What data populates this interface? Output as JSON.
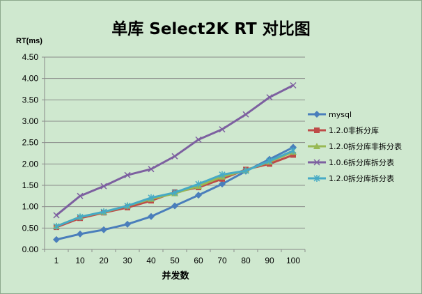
{
  "chart_data": {
    "type": "line",
    "title": "单库 Select2K RT 对比图",
    "ylabel": "RT(ms)",
    "xlabel": "并发数",
    "categories": [
      "1",
      "10",
      "20",
      "30",
      "40",
      "50",
      "60",
      "70",
      "80",
      "90",
      "100"
    ],
    "ylim": [
      0,
      4.5
    ],
    "ystep": 0.5,
    "ytick_labels": [
      "0.00",
      "0.50",
      "1.00",
      "1.50",
      "2.00",
      "2.50",
      "3.00",
      "3.50",
      "4.00",
      "4.50"
    ],
    "grid": true,
    "legend_position": "right",
    "series": [
      {
        "name": "mysql",
        "color": "#4a7ebb",
        "marker": "diamond",
        "values": [
          0.23,
          0.36,
          0.46,
          0.59,
          0.77,
          1.02,
          1.27,
          1.53,
          1.83,
          2.11,
          2.39
        ]
      },
      {
        "name": "1.2.0非拆分库",
        "color": "#be4b48",
        "marker": "square",
        "values": [
          0.52,
          0.73,
          0.86,
          0.98,
          1.14,
          1.34,
          1.45,
          1.65,
          1.87,
          2.0,
          2.21
        ]
      },
      {
        "name": "1.2.0拆分库非拆分表",
        "color": "#98b954",
        "marker": "triangle",
        "values": [
          0.54,
          0.76,
          0.87,
          1.02,
          1.18,
          1.31,
          1.48,
          1.7,
          1.85,
          2.05,
          2.28
        ]
      },
      {
        "name": "1.0.6拆分库拆分表",
        "color": "#7d60a0",
        "marker": "x",
        "values": [
          0.8,
          1.25,
          1.48,
          1.74,
          1.88,
          2.18,
          2.57,
          2.81,
          3.16,
          3.56,
          3.84
        ]
      },
      {
        "name": "1.2.0拆分库拆分表",
        "color": "#46aac5",
        "marker": "star",
        "values": [
          0.54,
          0.76,
          0.88,
          1.02,
          1.21,
          1.33,
          1.53,
          1.75,
          1.84,
          2.07,
          2.31
        ]
      }
    ]
  }
}
